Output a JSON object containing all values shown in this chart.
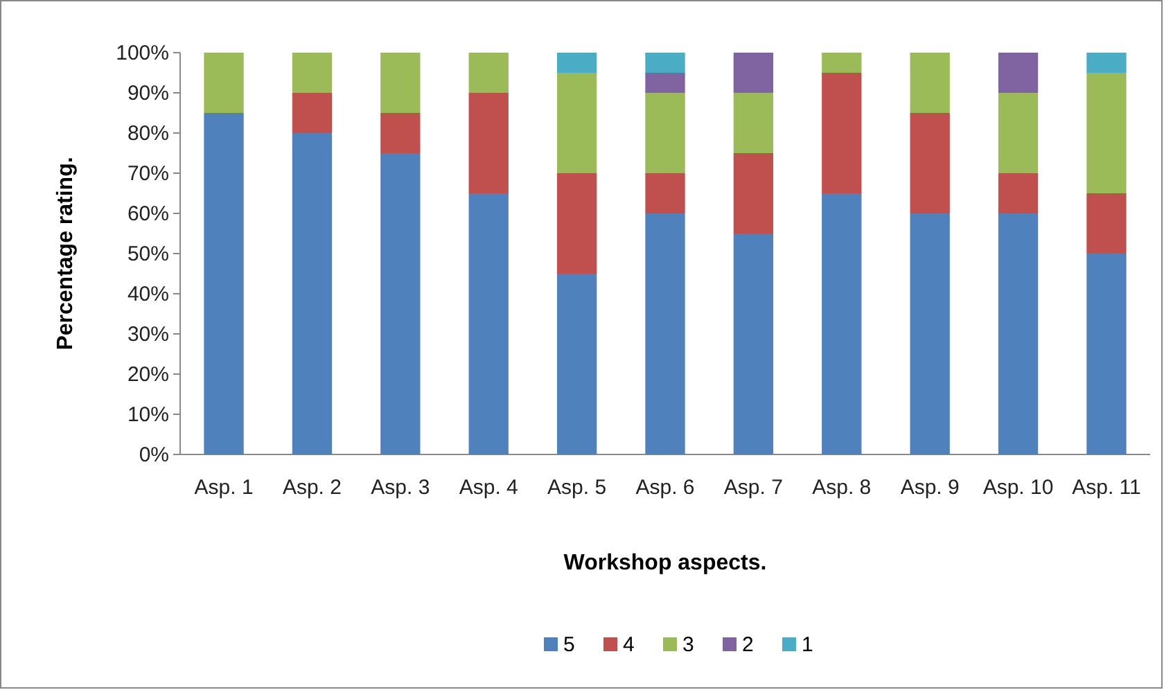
{
  "chart_data": {
    "type": "bar",
    "stacked": true,
    "xlabel": "Workshop aspects.",
    "ylabel": "Percentage rating.",
    "categories": [
      "Asp. 1",
      "Asp. 2",
      "Asp. 3",
      "Asp. 4",
      "Asp. 5",
      "Asp. 6",
      "Asp. 7",
      "Asp. 8",
      "Asp. 9",
      "Asp. 10",
      "Asp. 11"
    ],
    "series": [
      {
        "name": "5",
        "color": "#4f81bd",
        "values": [
          85,
          80,
          75,
          65,
          45,
          60,
          55,
          65,
          60,
          60,
          50
        ]
      },
      {
        "name": "4",
        "color": "#c0504d",
        "values": [
          0,
          10,
          10,
          25,
          25,
          10,
          20,
          30,
          25,
          10,
          15
        ]
      },
      {
        "name": "3",
        "color": "#9bbb59",
        "values": [
          15,
          10,
          15,
          10,
          25,
          20,
          15,
          5,
          15,
          20,
          30
        ]
      },
      {
        "name": "2",
        "color": "#8064a2",
        "values": [
          0,
          0,
          0,
          0,
          0,
          5,
          10,
          0,
          0,
          10,
          0
        ]
      },
      {
        "name": "1",
        "color": "#4bacc6",
        "values": [
          0,
          0,
          0,
          0,
          5,
          5,
          0,
          0,
          0,
          0,
          5
        ]
      }
    ],
    "ylim": [
      0,
      100
    ],
    "yticks": [
      {
        "value": 0,
        "label": "0%"
      },
      {
        "value": 10,
        "label": "10%"
      },
      {
        "value": 20,
        "label": "20%"
      },
      {
        "value": 30,
        "label": "30%"
      },
      {
        "value": 40,
        "label": "40%"
      },
      {
        "value": 50,
        "label": "50%"
      },
      {
        "value": 60,
        "label": "60%"
      },
      {
        "value": 70,
        "label": "70%"
      },
      {
        "value": 80,
        "label": "80%"
      },
      {
        "value": 90,
        "label": "90%"
      },
      {
        "value": 100,
        "label": "100%"
      }
    ],
    "grid": false,
    "legend": "bottom"
  }
}
